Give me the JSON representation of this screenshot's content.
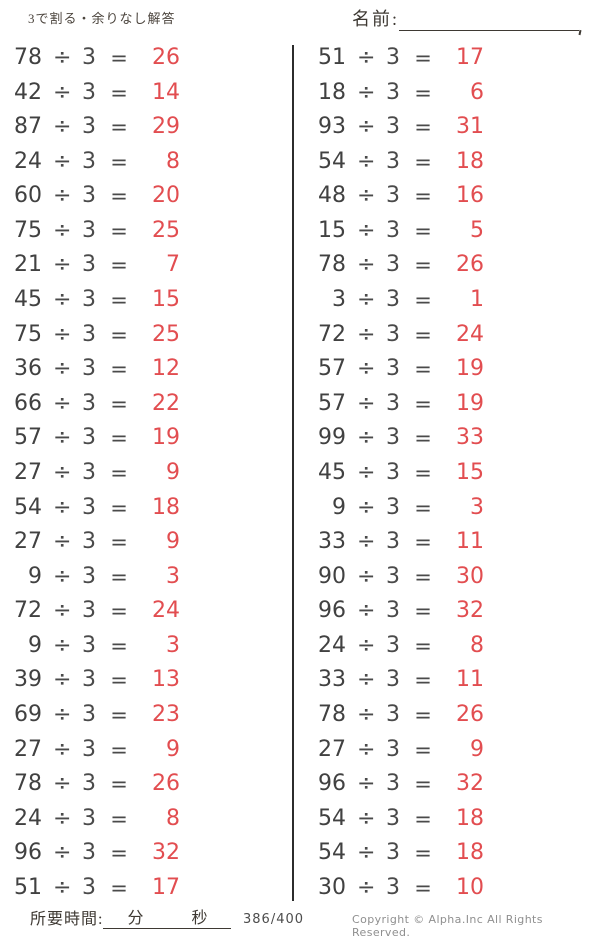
{
  "page": {
    "title": "3で割る・余りなし解答",
    "name_label": "名前:",
    "colors": {
      "answer_red": "#e24d50",
      "ink": "#3b3b3b",
      "divider": "#2c2c2c",
      "muted": "#8f8f8f"
    },
    "footer": {
      "time_label": "所要時間:",
      "minutes_label": "分",
      "seconds_label": "秒",
      "page_number": "386/400",
      "copyright": "Copyright ©  Alpha.Inc All Rights Reserved."
    }
  },
  "worksheet": {
    "operator": "÷",
    "divisor": 3,
    "equals": "=",
    "columns": [
      {
        "problems": [
          {
            "dividend": 78,
            "quotient": 26
          },
          {
            "dividend": 42,
            "quotient": 14
          },
          {
            "dividend": 87,
            "quotient": 29
          },
          {
            "dividend": 24,
            "quotient": 8
          },
          {
            "dividend": 60,
            "quotient": 20
          },
          {
            "dividend": 75,
            "quotient": 25
          },
          {
            "dividend": 21,
            "quotient": 7
          },
          {
            "dividend": 45,
            "quotient": 15
          },
          {
            "dividend": 75,
            "quotient": 25
          },
          {
            "dividend": 36,
            "quotient": 12
          },
          {
            "dividend": 66,
            "quotient": 22
          },
          {
            "dividend": 57,
            "quotient": 19
          },
          {
            "dividend": 27,
            "quotient": 9
          },
          {
            "dividend": 54,
            "quotient": 18
          },
          {
            "dividend": 27,
            "quotient": 9
          },
          {
            "dividend": 9,
            "quotient": 3
          },
          {
            "dividend": 72,
            "quotient": 24
          },
          {
            "dividend": 9,
            "quotient": 3
          },
          {
            "dividend": 39,
            "quotient": 13
          },
          {
            "dividend": 69,
            "quotient": 23
          },
          {
            "dividend": 27,
            "quotient": 9
          },
          {
            "dividend": 78,
            "quotient": 26
          },
          {
            "dividend": 24,
            "quotient": 8
          },
          {
            "dividend": 96,
            "quotient": 32
          },
          {
            "dividend": 51,
            "quotient": 17
          }
        ]
      },
      {
        "problems": [
          {
            "dividend": 51,
            "quotient": 17
          },
          {
            "dividend": 18,
            "quotient": 6
          },
          {
            "dividend": 93,
            "quotient": 31
          },
          {
            "dividend": 54,
            "quotient": 18
          },
          {
            "dividend": 48,
            "quotient": 16
          },
          {
            "dividend": 15,
            "quotient": 5
          },
          {
            "dividend": 78,
            "quotient": 26
          },
          {
            "dividend": 3,
            "quotient": 1
          },
          {
            "dividend": 72,
            "quotient": 24
          },
          {
            "dividend": 57,
            "quotient": 19
          },
          {
            "dividend": 57,
            "quotient": 19
          },
          {
            "dividend": 99,
            "quotient": 33
          },
          {
            "dividend": 45,
            "quotient": 15
          },
          {
            "dividend": 9,
            "quotient": 3
          },
          {
            "dividend": 33,
            "quotient": 11
          },
          {
            "dividend": 90,
            "quotient": 30
          },
          {
            "dividend": 96,
            "quotient": 32
          },
          {
            "dividend": 24,
            "quotient": 8
          },
          {
            "dividend": 33,
            "quotient": 11
          },
          {
            "dividend": 78,
            "quotient": 26
          },
          {
            "dividend": 27,
            "quotient": 9
          },
          {
            "dividend": 96,
            "quotient": 32
          },
          {
            "dividend": 54,
            "quotient": 18
          },
          {
            "dividend": 54,
            "quotient": 18
          },
          {
            "dividend": 30,
            "quotient": 10
          }
        ]
      }
    ]
  }
}
